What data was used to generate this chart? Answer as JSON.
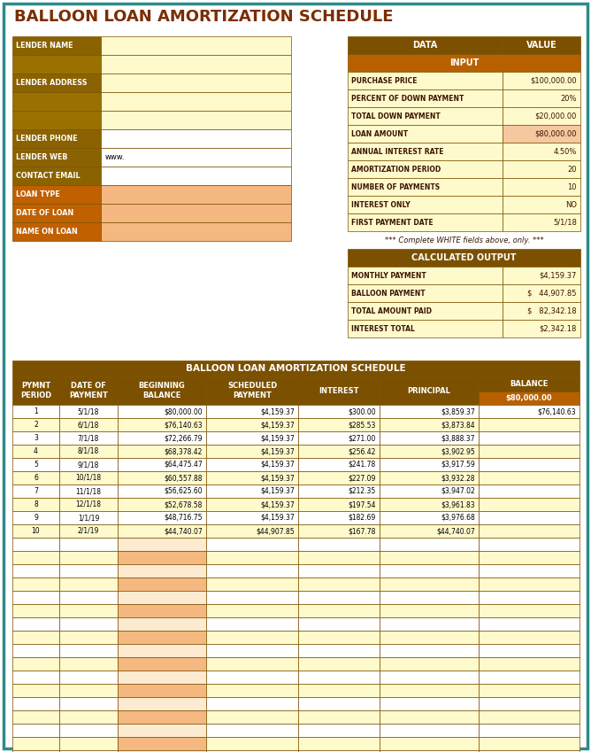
{
  "title": "BALLOON LOAN AMORTIZATION SCHEDULE",
  "title_color": "#7B2D00",
  "bg_color": "#FFFFFF",
  "border_color": "#2E8B8B",
  "lender_rows": [
    {
      "label": "LENDER NAME",
      "label_bg": "#8B6200",
      "val_bg": "#FFFACC",
      "val": ""
    },
    {
      "label": "",
      "label_bg": "#9A7000",
      "val_bg": "#FFFACC",
      "val": ""
    },
    {
      "label": "LENDER ADDRESS",
      "label_bg": "#8B6200",
      "val_bg": "#FFFACC",
      "val": ""
    },
    {
      "label": "",
      "label_bg": "#9A7000",
      "val_bg": "#FFFACC",
      "val": ""
    },
    {
      "label": "",
      "label_bg": "#9A7000",
      "val_bg": "#FFFACC",
      "val": ""
    },
    {
      "label": "LENDER PHONE",
      "label_bg": "#8B6200",
      "val_bg": "#FFFFFF",
      "val": ""
    },
    {
      "label": "LENDER WEB",
      "label_bg": "#8B6200",
      "val_bg": "#FFFFFF",
      "val": "www."
    },
    {
      "label": "CONTACT EMAIL",
      "label_bg": "#8B6200",
      "val_bg": "#FFFFFF",
      "val": ""
    },
    {
      "label": "LOAN TYPE",
      "label_bg": "#C06000",
      "val_bg": "#F5B880",
      "val": ""
    },
    {
      "label": "DATE OF LOAN",
      "label_bg": "#C06000",
      "val_bg": "#F5B880",
      "val": ""
    },
    {
      "label": "NAME ON LOAN",
      "label_bg": "#C06000",
      "val_bg": "#F5B880",
      "val": ""
    }
  ],
  "input_data": [
    {
      "label": "PURCHASE PRICE",
      "val": "$100,000.00",
      "val_bg": "#FFFACC"
    },
    {
      "label": "PERCENT OF DOWN PAYMENT",
      "val": "20%",
      "val_bg": "#FFFACC"
    },
    {
      "label": "TOTAL DOWN PAYMENT",
      "val": "$20,000.00",
      "val_bg": "#FFFACC"
    },
    {
      "label": "LOAN AMOUNT",
      "val": "$80,000.00",
      "val_bg": "#F5C8A0"
    },
    {
      "label": "ANNUAL INTEREST RATE",
      "val": "4.50%",
      "val_bg": "#FFFACC"
    },
    {
      "label": "AMORTIZATION PERIOD",
      "val": "20",
      "val_bg": "#FFFACC"
    },
    {
      "label": "NUMBER OF PAYMENTS",
      "val": "10",
      "val_bg": "#FFFACC"
    },
    {
      "label": "INTEREST ONLY",
      "val": "NO",
      "val_bg": "#FFFACC"
    },
    {
      "label": "FIRST PAYMENT DATE",
      "val": "5/1/18",
      "val_bg": "#FFFACC"
    }
  ],
  "output_data": [
    {
      "label": "MONTHLY PAYMENT",
      "val": "$4,159.37",
      "val_special": false
    },
    {
      "label": "BALLOON PAYMENT",
      "val": "$   44,907.85",
      "val_special": true
    },
    {
      "label": "TOTAL AMOUNT PAID",
      "val": "$   82,342.18",
      "val_special": true
    },
    {
      "label": "INTEREST TOTAL",
      "val": "$2,342.18",
      "val_special": false
    }
  ],
  "note_text": "*** Complete WHITE fields above, only. ***",
  "schedule_rows": [
    [
      "1",
      "5/1/18",
      "$80,000.00",
      "$4,159.37",
      "$300.00",
      "$3,859.37",
      "$76,140.63"
    ],
    [
      "2",
      "6/1/18",
      "$76,140.63",
      "$4,159.37",
      "$285.53",
      "$3,873.84",
      ""
    ],
    [
      "3",
      "7/1/18",
      "$72,266.79",
      "$4,159.37",
      "$271.00",
      "$3,888.37",
      ""
    ],
    [
      "4",
      "8/1/18",
      "$68,378.42",
      "$4,159.37",
      "$256.42",
      "$3,902.95",
      ""
    ],
    [
      "5",
      "9/1/18",
      "$64,475.47",
      "$4,159.37",
      "$241.78",
      "$3,917.59",
      ""
    ],
    [
      "6",
      "10/1/18",
      "$60,557.88",
      "$4,159.37",
      "$227.09",
      "$3,932.28",
      ""
    ],
    [
      "7",
      "11/1/18",
      "$56,625.60",
      "$4,159.37",
      "$212.35",
      "$3,947.02",
      ""
    ],
    [
      "8",
      "12/1/18",
      "$52,678.58",
      "$4,159.37",
      "$197.54",
      "$3,961.83",
      ""
    ],
    [
      "9",
      "1/1/19",
      "$48,716.75",
      "$4,159.37",
      "$182.69",
      "$3,976.68",
      ""
    ],
    [
      "10",
      "2/1/19",
      "$44,740.07",
      "$44,907.85",
      "$167.78",
      "$44,740.07",
      ""
    ],
    [
      "",
      "",
      "",
      "",
      "",
      "",
      ""
    ],
    [
      "",
      "",
      "",
      "",
      "",
      "",
      ""
    ],
    [
      "",
      "",
      "",
      "",
      "",
      "",
      ""
    ],
    [
      "",
      "",
      "",
      "",
      "",
      "",
      ""
    ],
    [
      "",
      "",
      "",
      "",
      "",
      "",
      ""
    ],
    [
      "",
      "",
      "",
      "",
      "",
      "",
      ""
    ],
    [
      "",
      "",
      "",
      "",
      "",
      "",
      ""
    ],
    [
      "",
      "",
      "",
      "",
      "",
      "",
      ""
    ],
    [
      "",
      "",
      "",
      "",
      "",
      "",
      ""
    ],
    [
      "",
      "",
      "",
      "",
      "",
      "",
      ""
    ],
    [
      "",
      "",
      "",
      "",
      "",
      "",
      ""
    ],
    [
      "",
      "",
      "",
      "",
      "",
      "",
      ""
    ],
    [
      "",
      "",
      "",
      "",
      "",
      "",
      ""
    ],
    [
      "",
      "",
      "",
      "",
      "",
      "",
      ""
    ],
    [
      "",
      "",
      "",
      "",
      "",
      "",
      ""
    ],
    [
      "",
      "",
      "",
      "",
      "",
      "",
      ""
    ],
    [
      "",
      "",
      "",
      "",
      "",
      "",
      ""
    ]
  ],
  "dark_brown": "#7B5000",
  "orange_brown": "#B86000",
  "light_cream": "#FFFACC",
  "med_cream": "#F5DCA0",
  "peach": "#F5B880",
  "white": "#FFFFFF"
}
